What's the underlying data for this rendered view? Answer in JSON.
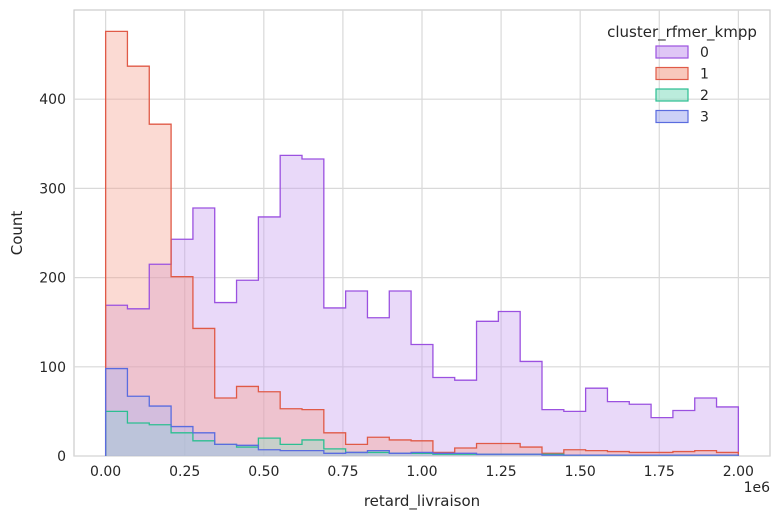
{
  "chart_data": {
    "type": "histogram-step",
    "title": "",
    "xlabel": "retard_livraison",
    "ylabel": "Count",
    "x_offset_text": "1e6",
    "xlim": [
      -0.1,
      2.1
    ],
    "ylim": [
      0,
      500
    ],
    "grid": true,
    "legend": {
      "title": "cluster_rfmer_kmpp",
      "placement": "top-right"
    },
    "xticks": [
      0.0,
      0.25,
      0.5,
      0.75,
      1.0,
      1.25,
      1.5,
      1.75,
      2.0
    ],
    "xtick_labels": [
      "0.00",
      "0.25",
      "0.50",
      "0.75",
      "1.00",
      "1.25",
      "1.50",
      "1.75",
      "2.00"
    ],
    "yticks": [
      0,
      100,
      200,
      300,
      400
    ],
    "ytick_labels": [
      "0",
      "100",
      "200",
      "300",
      "400"
    ],
    "bin_edges": [
      0.0,
      0.0689,
      0.1379,
      0.2069,
      0.2759,
      0.3448,
      0.4138,
      0.4828,
      0.5517,
      0.6207,
      0.6897,
      0.7586,
      0.8276,
      0.8966,
      0.9655,
      1.0345,
      1.1034,
      1.1724,
      1.2414,
      1.3103,
      1.3793,
      1.4483,
      1.5172,
      1.5862,
      1.6552,
      1.7241,
      1.7931,
      1.8621,
      1.931,
      2.0
    ],
    "series": [
      {
        "name": "0",
        "color": "#9b51e0",
        "fill": "#c9a0f0",
        "values": [
          169,
          165,
          215,
          243,
          278,
          172,
          197,
          268,
          337,
          333,
          166,
          185,
          155,
          185,
          125,
          88,
          85,
          151,
          162,
          106,
          52,
          50,
          76,
          61,
          58,
          43,
          51,
          65,
          55
        ]
      },
      {
        "name": "1",
        "color": "#e05a47",
        "fill": "#f4a390",
        "values": [
          476,
          437,
          372,
          201,
          143,
          65,
          78,
          72,
          53,
          52,
          26,
          13,
          21,
          18,
          17,
          4,
          9,
          14,
          14,
          10,
          3,
          7,
          6,
          5,
          4,
          4,
          5,
          6,
          4
        ]
      },
      {
        "name": "2",
        "color": "#2bbf91",
        "fill": "#8ee0c4",
        "values": [
          50,
          37,
          35,
          26,
          17,
          13,
          10,
          20,
          13,
          18,
          8,
          4,
          4,
          3,
          3,
          2,
          2,
          2,
          2,
          2,
          2,
          1,
          1,
          1,
          1,
          1,
          1,
          1,
          1
        ]
      },
      {
        "name": "3",
        "color": "#5a6cdf",
        "fill": "#aab3f2",
        "values": [
          98,
          67,
          56,
          33,
          26,
          13,
          12,
          7,
          6,
          6,
          3,
          4,
          6,
          3,
          4,
          3,
          3,
          2,
          2,
          2,
          1,
          1,
          1,
          1,
          1,
          1,
          1,
          1,
          1
        ]
      }
    ]
  }
}
